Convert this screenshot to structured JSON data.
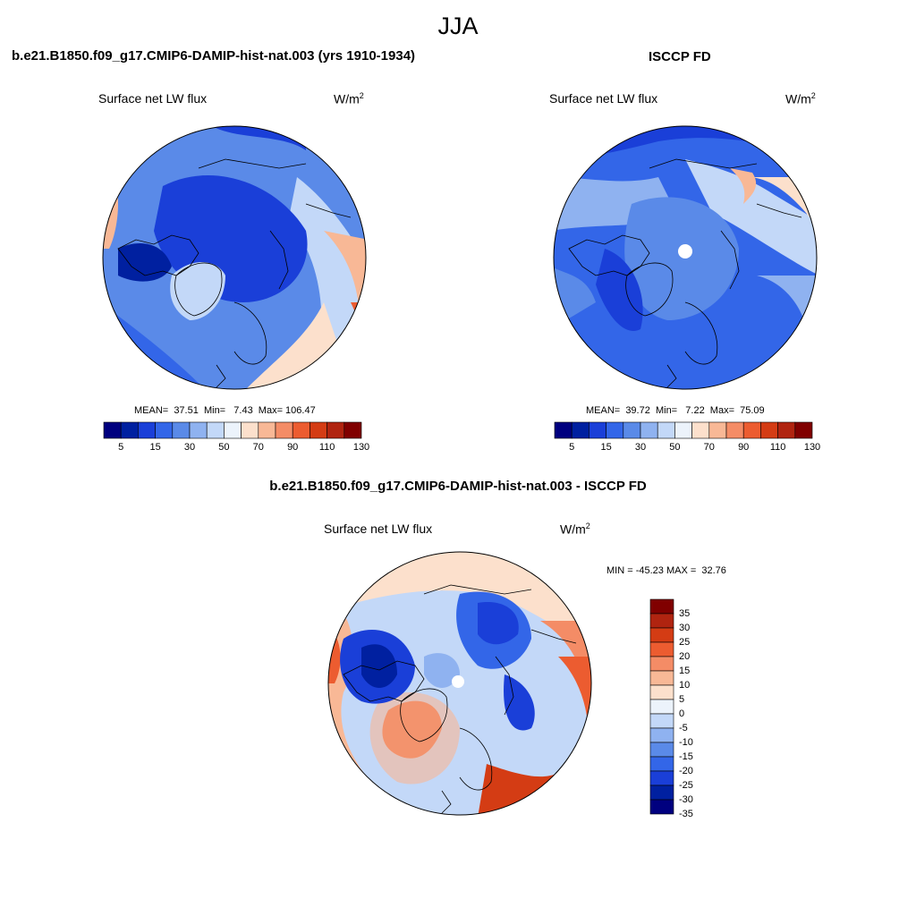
{
  "figure": {
    "season_title": "JJA",
    "panel_left": {
      "title": "b.e21.B1850.f09_g17.CMIP6-DAMIP-hist-nat.003 (yrs 1910-1934)",
      "variable": "Surface net LW flux",
      "units_base": "W/m",
      "units_exp": "2",
      "stats": "MEAN=  37.51  Min=   7.43  Max= 106.47",
      "mean": 37.51,
      "min": 7.43,
      "max": 106.47
    },
    "panel_right": {
      "title": "ISCCP FD",
      "variable": "Surface net LW flux",
      "units_base": "W/m",
      "units_exp": "2",
      "stats": "MEAN=  39.72  Min=   7.22  Max=  75.09",
      "mean": 39.72,
      "min": 7.22,
      "max": 75.09
    },
    "panel_diff": {
      "title": "b.e21.B1850.f09_g17.CMIP6-DAMIP-hist-nat.003 - ISCCP FD",
      "variable": "Surface net LW flux",
      "units_base": "W/m",
      "units_exp": "2",
      "stats": "MIN = -45.23 MAX =  32.76",
      "min": -45.23,
      "max": 32.76
    },
    "colorbar_abs": {
      "tick_labels": [
        "5",
        "15",
        "30",
        "50",
        "70",
        "90",
        "110",
        "130"
      ],
      "colors": [
        "#00007f",
        "#0020a0",
        "#1a3fd8",
        "#3366e8",
        "#5a8ae8",
        "#8fb2f0",
        "#c3d8f8",
        "#ecf3fb",
        "#fce0cc",
        "#f8b896",
        "#f48c66",
        "#ec5c30",
        "#d43c14",
        "#b02410",
        "#800000"
      ]
    },
    "colorbar_diff": {
      "tick_labels": [
        "35",
        "30",
        "25",
        "20",
        "15",
        "10",
        "5",
        "0",
        "-5",
        "-10",
        "-15",
        "-20",
        "-25",
        "-30",
        "-35"
      ],
      "colors": [
        "#800000",
        "#b02410",
        "#d43c14",
        "#ec5c30",
        "#f48c66",
        "#f8b896",
        "#fce0cc",
        "#ecf3fb",
        "#c3d8f8",
        "#8fb2f0",
        "#5a8ae8",
        "#3366e8",
        "#1a3fd8",
        "#0020a0",
        "#00007f"
      ]
    }
  }
}
